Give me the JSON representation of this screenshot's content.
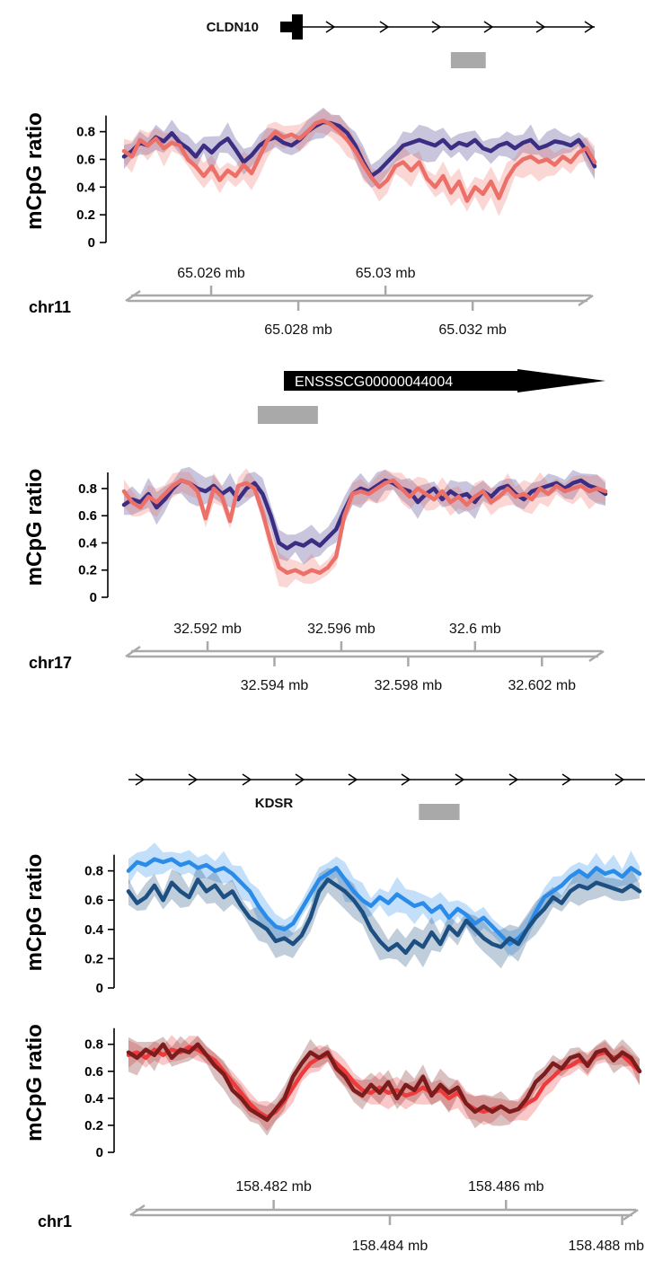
{
  "colors": {
    "purple": "#3b2d82",
    "salmon": "#ec6f68",
    "lightblue": "#2a8ce8",
    "darkblue": "#1d4f80",
    "red": "#ee3a3a",
    "darkred": "#7c1c1c",
    "gray": "#a9a9a9"
  },
  "chart_data": [
    {
      "type": "line",
      "chromosome": "chr11",
      "gene": {
        "name": "CLDN10",
        "strand": "+"
      },
      "highlight_mb": [
        65.0315,
        65.0323
      ],
      "xlim_mb": [
        65.024,
        65.0348
      ],
      "ylabel": "mCpG ratio",
      "yticks": [
        "0",
        "0.2",
        "0.4",
        "0.6",
        "0.8"
      ],
      "ylim": [
        0,
        1
      ],
      "xticks_top": [
        "65.026 mb",
        "65.03 mb"
      ],
      "xticks_bottom": [
        "65.028 mb",
        "65.032 mb"
      ],
      "series": [
        {
          "color": "#3b2d82",
          "values": [
            0.62,
            0.66,
            0.72,
            0.7,
            0.76,
            0.73,
            0.79,
            0.72,
            0.68,
            0.62,
            0.7,
            0.65,
            0.71,
            0.75,
            0.67,
            0.58,
            0.63,
            0.7,
            0.74,
            0.76,
            0.72,
            0.7,
            0.74,
            0.8,
            0.84,
            0.87,
            0.86,
            0.84,
            0.79,
            0.7,
            0.58,
            0.48,
            0.52,
            0.58,
            0.64,
            0.7,
            0.72,
            0.74,
            0.72,
            0.7,
            0.74,
            0.68,
            0.72,
            0.7,
            0.74,
            0.68,
            0.66,
            0.7,
            0.72,
            0.68,
            0.72,
            0.74,
            0.68,
            0.7,
            0.73,
            0.72,
            0.7,
            0.74,
            0.66,
            0.55
          ]
        },
        {
          "color": "#ec6f68",
          "values": [
            0.66,
            0.62,
            0.74,
            0.7,
            0.75,
            0.68,
            0.72,
            0.7,
            0.6,
            0.55,
            0.48,
            0.55,
            0.45,
            0.52,
            0.48,
            0.56,
            0.5,
            0.62,
            0.74,
            0.8,
            0.76,
            0.78,
            0.75,
            0.8,
            0.86,
            0.88,
            0.85,
            0.8,
            0.74,
            0.66,
            0.56,
            0.47,
            0.4,
            0.45,
            0.55,
            0.58,
            0.52,
            0.58,
            0.46,
            0.4,
            0.48,
            0.36,
            0.44,
            0.3,
            0.4,
            0.35,
            0.44,
            0.32,
            0.46,
            0.55,
            0.6,
            0.62,
            0.58,
            0.6,
            0.56,
            0.62,
            0.58,
            0.65,
            0.68,
            0.58
          ]
        }
      ]
    },
    {
      "type": "line",
      "chromosome": "chr17",
      "gene": {
        "name": "ENSSSCG00000044004",
        "strand": "+"
      },
      "highlight_mb": [
        32.5935,
        32.5953
      ],
      "xlim_mb": [
        32.5895,
        32.6039
      ],
      "ylabel": "mCpG ratio",
      "yticks": [
        "0",
        "0.2",
        "0.4",
        "0.6",
        "0.8"
      ],
      "ylim": [
        0,
        1
      ],
      "xticks_top": [
        "32.592 mb",
        "32.596 mb",
        "32.6 mb"
      ],
      "xticks_bottom": [
        "32.594 mb",
        "32.598 mb",
        "32.602 mb"
      ],
      "series": [
        {
          "color": "#3b2d82",
          "values": [
            0.68,
            0.72,
            0.7,
            0.76,
            0.66,
            0.72,
            0.8,
            0.86,
            0.84,
            0.8,
            0.78,
            0.82,
            0.76,
            0.8,
            0.72,
            0.8,
            0.84,
            0.76,
            0.6,
            0.4,
            0.36,
            0.4,
            0.38,
            0.42,
            0.38,
            0.44,
            0.5,
            0.64,
            0.76,
            0.8,
            0.78,
            0.82,
            0.86,
            0.84,
            0.8,
            0.78,
            0.7,
            0.76,
            0.8,
            0.72,
            0.78,
            0.74,
            0.76,
            0.7,
            0.78,
            0.74,
            0.8,
            0.82,
            0.76,
            0.72,
            0.78,
            0.8,
            0.82,
            0.84,
            0.8,
            0.84,
            0.86,
            0.82,
            0.8,
            0.76
          ]
        },
        {
          "color": "#ec6f68",
          "values": [
            0.78,
            0.7,
            0.66,
            0.74,
            0.7,
            0.76,
            0.82,
            0.86,
            0.84,
            0.78,
            0.58,
            0.8,
            0.74,
            0.56,
            0.82,
            0.84,
            0.8,
            0.62,
            0.4,
            0.22,
            0.18,
            0.2,
            0.17,
            0.2,
            0.18,
            0.22,
            0.3,
            0.6,
            0.76,
            0.78,
            0.76,
            0.8,
            0.84,
            0.86,
            0.8,
            0.74,
            0.8,
            0.76,
            0.72,
            0.78,
            0.7,
            0.74,
            0.68,
            0.74,
            0.78,
            0.7,
            0.74,
            0.8,
            0.74,
            0.76,
            0.72,
            0.8,
            0.76,
            0.82,
            0.78,
            0.8,
            0.82,
            0.78,
            0.8,
            0.78
          ]
        }
      ]
    },
    {
      "type": "line",
      "chromosome": "chr1",
      "gene": {
        "name": "KDSR",
        "strand": "+"
      },
      "highlight_mb": [
        158.4845,
        158.4852
      ],
      "xlim_mb": [
        158.4795,
        158.4883
      ],
      "ylabel": "mCpG ratio",
      "xticks_top": [
        "158.482 mb",
        "158.486 mb"
      ],
      "xticks_bottom": [
        "158.484 mb",
        "158.488 mb"
      ],
      "panels": [
        {
          "yticks": [
            "0",
            "0.2",
            "0.4",
            "0.6",
            "0.8"
          ],
          "ylim": [
            0,
            1
          ],
          "series": [
            {
              "color": "#2a8ce8",
              "values": [
                0.8,
                0.86,
                0.84,
                0.88,
                0.86,
                0.88,
                0.84,
                0.86,
                0.82,
                0.84,
                0.8,
                0.82,
                0.78,
                0.72,
                0.66,
                0.56,
                0.48,
                0.42,
                0.4,
                0.44,
                0.54,
                0.64,
                0.74,
                0.78,
                0.82,
                0.74,
                0.66,
                0.6,
                0.56,
                0.62,
                0.58,
                0.64,
                0.6,
                0.56,
                0.58,
                0.52,
                0.56,
                0.48,
                0.54,
                0.5,
                0.44,
                0.48,
                0.42,
                0.36,
                0.3,
                0.34,
                0.4,
                0.52,
                0.62,
                0.66,
                0.7,
                0.76,
                0.8,
                0.76,
                0.82,
                0.78,
                0.8,
                0.76,
                0.82,
                0.78
              ]
            },
            {
              "color": "#1d4f80",
              "values": [
                0.66,
                0.58,
                0.62,
                0.7,
                0.6,
                0.72,
                0.66,
                0.62,
                0.74,
                0.66,
                0.7,
                0.62,
                0.66,
                0.56,
                0.48,
                0.44,
                0.4,
                0.32,
                0.34,
                0.3,
                0.36,
                0.48,
                0.66,
                0.74,
                0.7,
                0.66,
                0.6,
                0.52,
                0.4,
                0.32,
                0.26,
                0.3,
                0.24,
                0.32,
                0.28,
                0.38,
                0.3,
                0.42,
                0.36,
                0.46,
                0.4,
                0.34,
                0.3,
                0.28,
                0.34,
                0.3,
                0.4,
                0.48,
                0.54,
                0.62,
                0.58,
                0.66,
                0.7,
                0.68,
                0.72,
                0.7,
                0.68,
                0.66,
                0.7,
                0.66
              ]
            }
          ]
        },
        {
          "yticks": [
            "0",
            "0.2",
            "0.4",
            "0.6",
            "0.8"
          ],
          "ylim": [
            0,
            1
          ],
          "series": [
            {
              "color": "#ee3a3a",
              "values": [
                0.72,
                0.74,
                0.7,
                0.76,
                0.72,
                0.76,
                0.74,
                0.78,
                0.76,
                0.72,
                0.68,
                0.6,
                0.52,
                0.44,
                0.36,
                0.3,
                0.26,
                0.3,
                0.38,
                0.48,
                0.58,
                0.66,
                0.7,
                0.72,
                0.66,
                0.6,
                0.52,
                0.46,
                0.44,
                0.48,
                0.44,
                0.46,
                0.42,
                0.44,
                0.48,
                0.44,
                0.46,
                0.4,
                0.44,
                0.36,
                0.32,
                0.3,
                0.32,
                0.34,
                0.3,
                0.32,
                0.36,
                0.4,
                0.5,
                0.56,
                0.62,
                0.64,
                0.68,
                0.66,
                0.72,
                0.74,
                0.7,
                0.72,
                0.66,
                0.6
              ]
            },
            {
              "color": "#7c1c1c",
              "values": [
                0.74,
                0.7,
                0.76,
                0.72,
                0.8,
                0.7,
                0.76,
                0.74,
                0.8,
                0.72,
                0.64,
                0.58,
                0.46,
                0.4,
                0.32,
                0.28,
                0.24,
                0.32,
                0.4,
                0.56,
                0.66,
                0.74,
                0.7,
                0.74,
                0.62,
                0.56,
                0.46,
                0.42,
                0.5,
                0.44,
                0.52,
                0.4,
                0.5,
                0.46,
                0.56,
                0.42,
                0.5,
                0.44,
                0.48,
                0.36,
                0.3,
                0.34,
                0.3,
                0.34,
                0.3,
                0.32,
                0.4,
                0.52,
                0.58,
                0.66,
                0.62,
                0.7,
                0.72,
                0.64,
                0.74,
                0.76,
                0.68,
                0.74,
                0.7,
                0.6
              ]
            }
          ]
        }
      ]
    }
  ]
}
